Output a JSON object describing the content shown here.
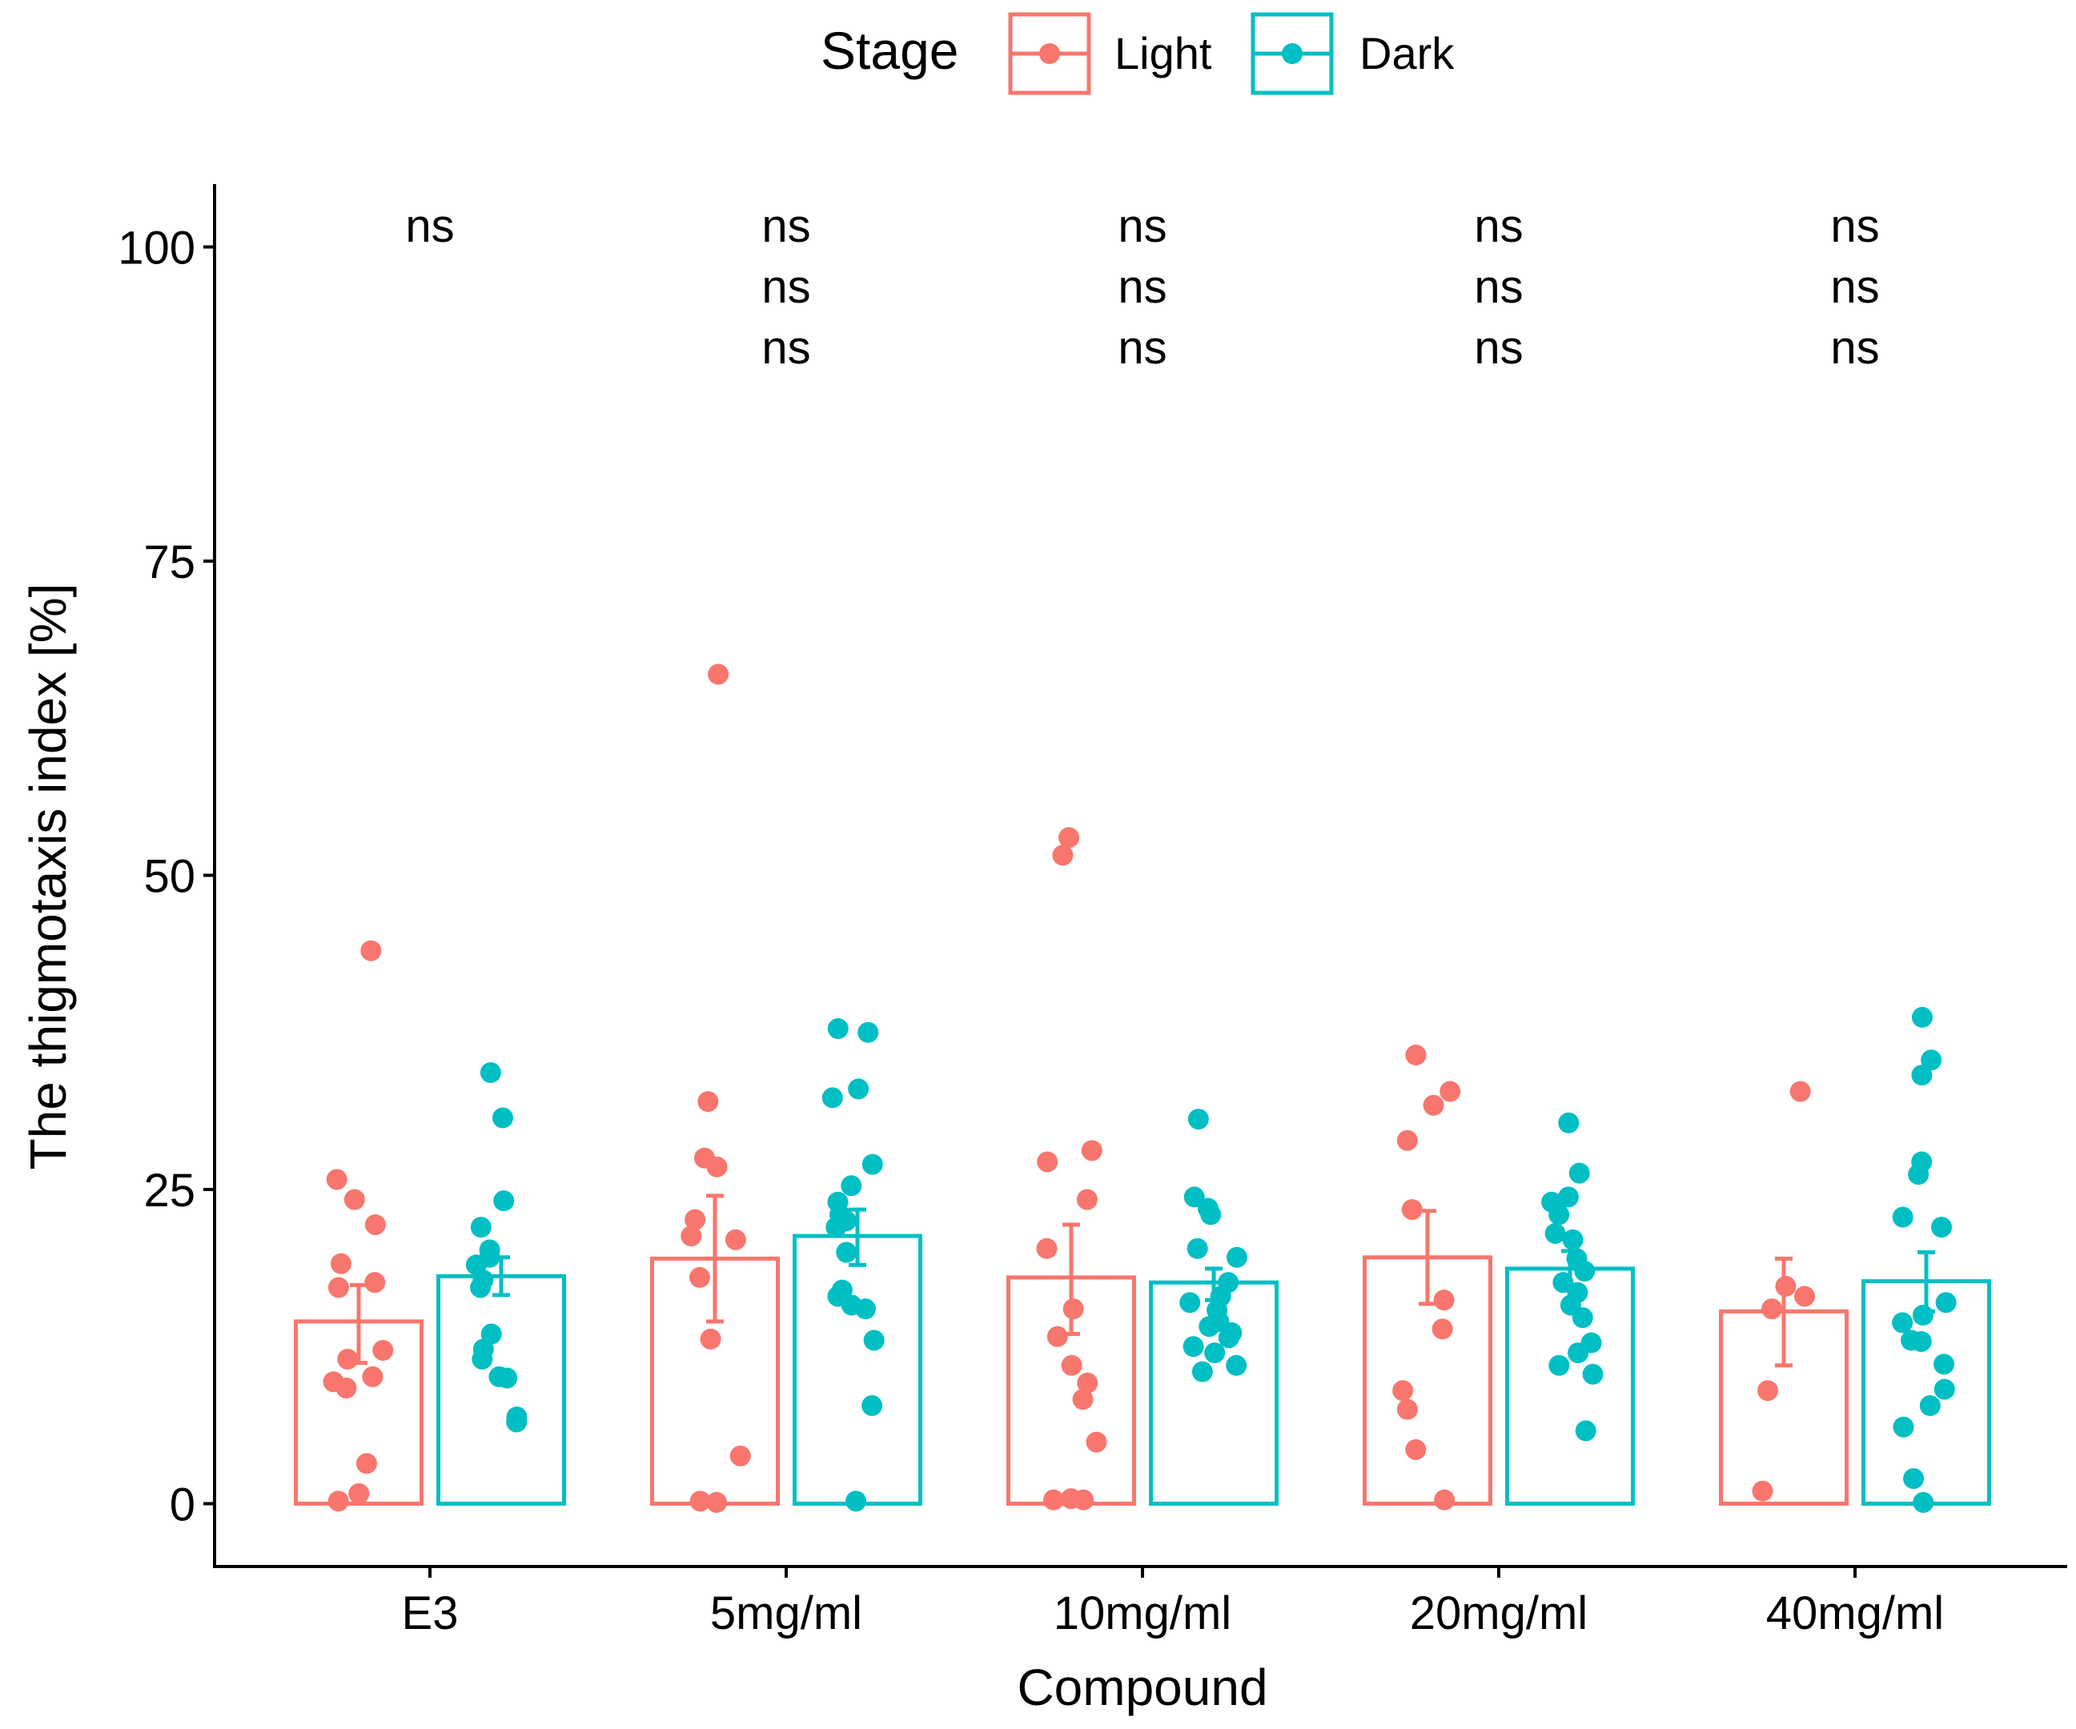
{
  "chart_data": {
    "type": "bar",
    "title": "",
    "xlabel": "Compound",
    "ylabel": "The thigmotaxis index [%]",
    "ylim": [
      -5,
      105
    ],
    "yticks": [
      0,
      25,
      50,
      75,
      100
    ],
    "categories": [
      "E3",
      "5mg/ml",
      "10mg/ml",
      "20mg/ml",
      "40mg/ml"
    ],
    "legend": {
      "title": "Stage",
      "position": "top"
    },
    "colors": {
      "Light": "#F8766D",
      "Dark": "#00BFC4"
    },
    "series": [
      {
        "name": "Light",
        "values": [
          14.5,
          19.5,
          18.0,
          19.6,
          15.3
        ],
        "err_low": [
          11.2,
          14.5,
          13.5,
          15.9,
          11.0
        ],
        "err_high": [
          17.4,
          24.5,
          22.2,
          23.3,
          19.5
        ],
        "points": [
          [
            44,
            25.8,
            24.2,
            22.2,
            19.1,
            17.6,
            17.2,
            12.2,
            11.5,
            10.1,
            9.7,
            9.2,
            3.2,
            0.8,
            0.2
          ],
          [
            66,
            32,
            27.5,
            26.8,
            22.6,
            21.3,
            21.0,
            18.0,
            13.1,
            3.8,
            0.2,
            0.1
          ],
          [
            53,
            51.6,
            28.1,
            27.2,
            24.2,
            20.3,
            15.5,
            13.3,
            11.0,
            9.6,
            8.3,
            4.9,
            0.4,
            0.3,
            0.3
          ],
          [
            35.7,
            32.8,
            31.7,
            28.9,
            23.4,
            16.2,
            13.9,
            9.0,
            7.5,
            4.3,
            0.3
          ],
          [
            32.8,
            17.3,
            16.5,
            15.5,
            9.0,
            1.0
          ]
        ]
      },
      {
        "name": "Dark",
        "values": [
          18.1,
          21.3,
          17.6,
          18.7,
          17.7
        ],
        "err_low": [
          16.6,
          19.0,
          16.2,
          17.2,
          15.3
        ],
        "err_high": [
          19.6,
          23.4,
          18.7,
          20.1,
          20.0
        ],
        "points": [
          [
            34.3,
            30.7,
            24.1,
            22.0,
            20.2,
            19.6,
            19.0,
            17.8,
            17.2,
            13.5,
            12.3,
            11.5,
            10.1,
            10.0,
            6.9,
            6.5
          ],
          [
            37.8,
            37.5,
            33.0,
            32.3,
            27.0,
            25.3,
            24.0,
            23.0,
            22.5,
            22.0,
            20.0,
            17.0,
            16.5,
            15.5,
            15.8,
            13.0,
            7.8,
            0.2
          ],
          [
            30.6,
            24.4,
            23.5,
            23.0,
            20.3,
            19.6,
            17.6,
            16.5,
            16.0,
            15.4,
            14.5,
            14.1,
            13.6,
            13.2,
            12.5,
            12.0,
            11.0,
            10.5
          ],
          [
            30.3,
            26.3,
            24.4,
            24.0,
            23.0,
            21.5,
            21.0,
            19.5,
            18.5,
            17.6,
            16.8,
            15.8,
            14.8,
            12.8,
            12.0,
            11.0,
            10.3,
            5.8
          ],
          [
            38.7,
            35.3,
            34.1,
            27.2,
            26.2,
            22.8,
            22.0,
            16.0,
            15.0,
            14.4,
            13.0,
            12.9,
            11.1,
            9.1,
            7.8,
            6.1,
            2.0,
            0.1
          ]
        ]
      }
    ],
    "annotations": [
      [
        "ns"
      ],
      [
        "ns",
        "ns",
        "ns"
      ],
      [
        "ns",
        "ns",
        "ns"
      ],
      [
        "ns",
        "ns",
        "ns"
      ],
      [
        "ns",
        "ns",
        "ns"
      ]
    ]
  }
}
